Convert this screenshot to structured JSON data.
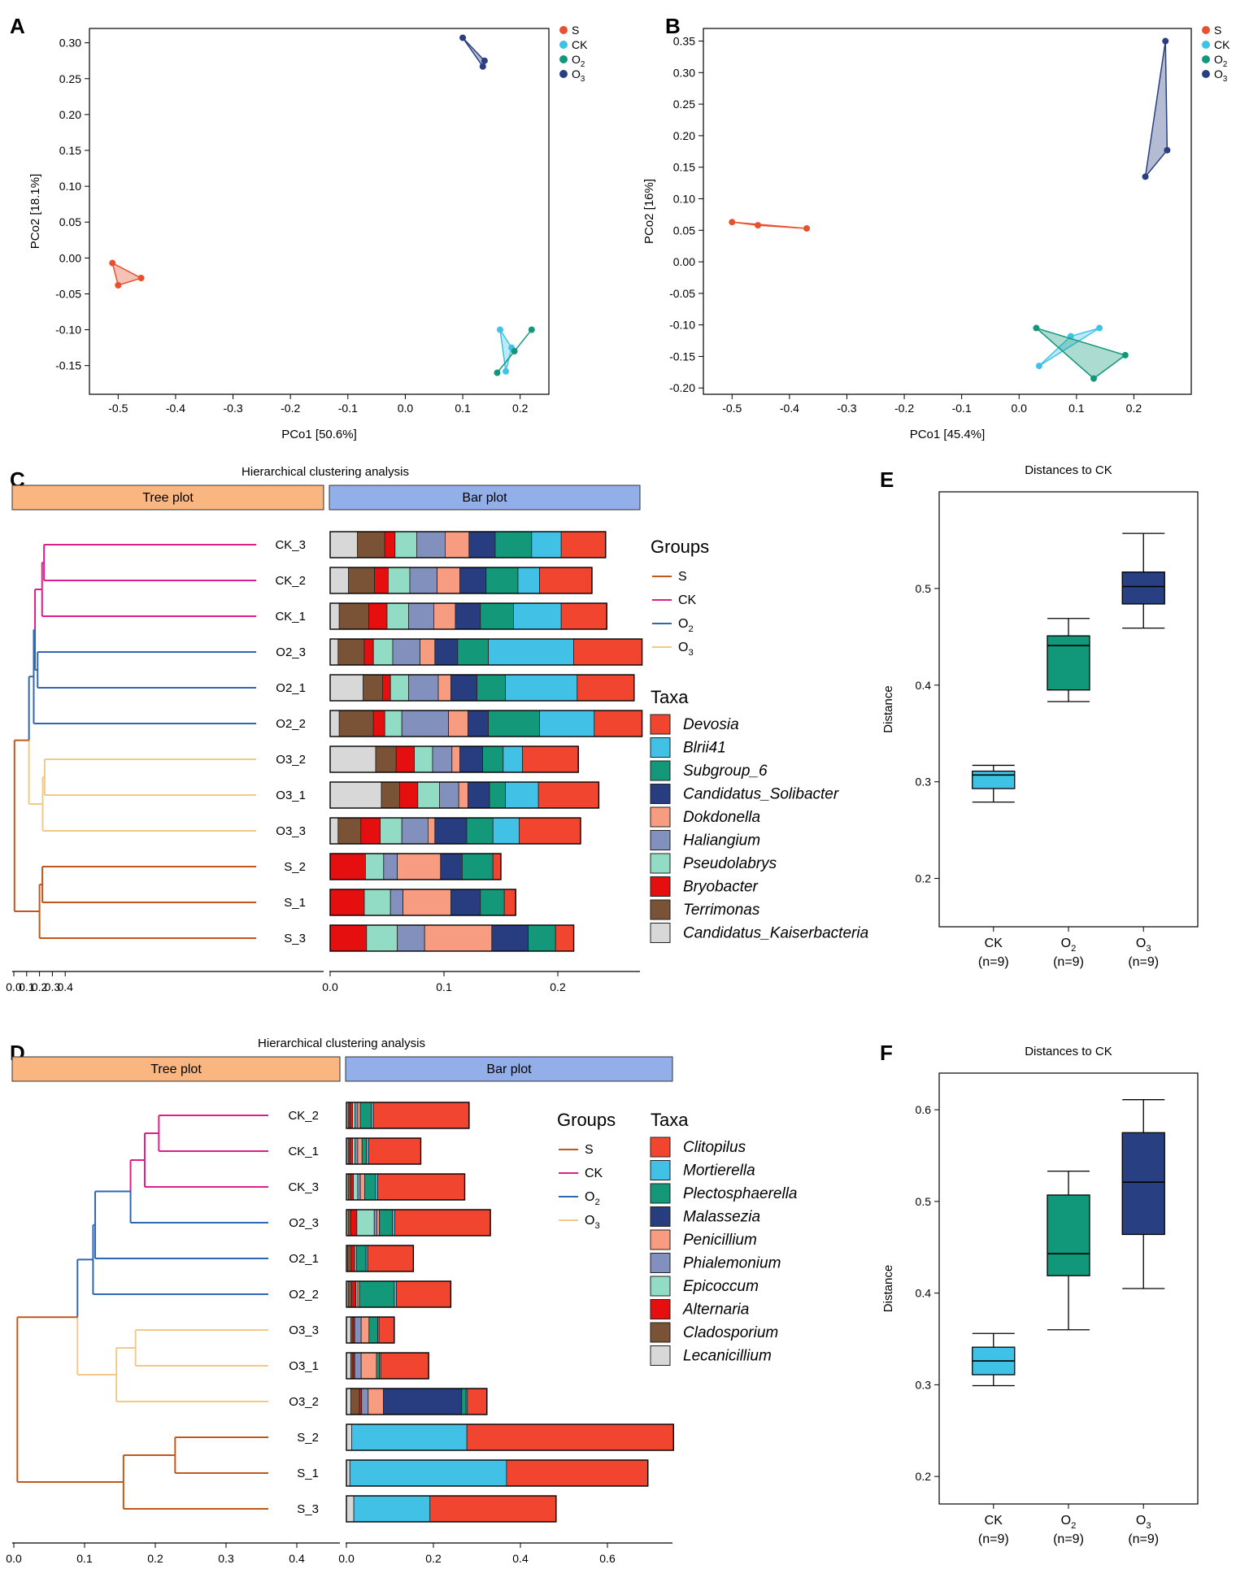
{
  "figure": {
    "panels": [
      "A",
      "B",
      "C",
      "D",
      "E",
      "F"
    ],
    "colors": {
      "S": "#e8502f",
      "CK": "#3ec3e6",
      "O2": "#11977a",
      "O3": "#283f82",
      "tree_S": "#c0571b",
      "tree_CK": "#de1e8a",
      "tree_O2": "#2f67b3",
      "tree_O3": "#f3c98a",
      "tree_header": "#f9b681",
      "bar_header": "#93afea"
    }
  },
  "legend_groups": [
    "S",
    "CK",
    "O2",
    "O3"
  ],
  "chart_data": [
    {
      "id": "A",
      "type": "scatter",
      "xlabel": "PCo1 [50.6%]",
      "ylabel": "PCo2 [18.1%]",
      "xlim": [
        -0.55,
        0.25
      ],
      "ylim": [
        -0.19,
        0.32
      ],
      "xticks": [
        "-0.5",
        "-0.4",
        "-0.3",
        "-0.2",
        "-0.1",
        "0.0",
        "0.1",
        "0.2"
      ],
      "yticks": [
        "-0.15",
        "-0.10",
        "-0.05",
        "0.00",
        "0.05",
        "0.10",
        "0.15",
        "0.20",
        "0.25",
        "0.30"
      ],
      "legend": [
        "S",
        "CK",
        "O2",
        "O3"
      ],
      "series": [
        {
          "name": "S",
          "points": [
            [
              -0.51,
              -0.007
            ],
            [
              -0.46,
              -0.028
            ],
            [
              -0.5,
              -0.038
            ]
          ]
        },
        {
          "name": "CK",
          "points": [
            [
              0.165,
              -0.1
            ],
            [
              0.185,
              -0.125
            ],
            [
              0.175,
              -0.158
            ]
          ]
        },
        {
          "name": "O2",
          "points": [
            [
              0.22,
              -0.1
            ],
            [
              0.19,
              -0.13
            ],
            [
              0.16,
              -0.16
            ]
          ]
        },
        {
          "name": "O3",
          "points": [
            [
              0.1,
              0.307
            ],
            [
              0.138,
              0.275
            ],
            [
              0.135,
              0.267
            ]
          ]
        }
      ]
    },
    {
      "id": "B",
      "type": "scatter",
      "xlabel": "PCo1 [45.4%]",
      "ylabel": "PCo2 [16%]",
      "xlim": [
        -0.55,
        0.3
      ],
      "ylim": [
        -0.21,
        0.37
      ],
      "xticks": [
        "-0.5",
        "-0.4",
        "-0.3",
        "-0.2",
        "-0.1",
        "0.0",
        "0.1",
        "0.2"
      ],
      "yticks": [
        "-0.20",
        "-0.15",
        "-0.10",
        "-0.05",
        "0.00",
        "0.05",
        "0.10",
        "0.15",
        "0.20",
        "0.25",
        "0.30",
        "0.35"
      ],
      "legend": [
        "S",
        "CK",
        "O2",
        "O3"
      ],
      "series": [
        {
          "name": "S",
          "points": [
            [
              -0.5,
              0.063
            ],
            [
              -0.455,
              0.058
            ],
            [
              -0.37,
              0.053
            ]
          ]
        },
        {
          "name": "CK",
          "points": [
            [
              0.035,
              -0.165
            ],
            [
              0.09,
              -0.118
            ],
            [
              0.14,
              -0.105
            ]
          ]
        },
        {
          "name": "O2",
          "points": [
            [
              0.03,
              -0.105
            ],
            [
              0.185,
              -0.148
            ],
            [
              0.13,
              -0.185
            ]
          ]
        },
        {
          "name": "O3",
          "points": [
            [
              0.255,
              0.35
            ],
            [
              0.258,
              0.177
            ],
            [
              0.22,
              0.135
            ]
          ]
        }
      ]
    },
    {
      "id": "C",
      "type": "bar",
      "title": "Hierarchical clustering analysis",
      "tree_label": "Tree plot",
      "bar_label": "Bar plot",
      "tree_ticks": [
        "0.0",
        "0.1",
        "0.2",
        "0.3",
        "0.4"
      ],
      "bar_ticks": [
        "0.0",
        "0.1",
        "0.2"
      ],
      "groups_title": "Groups",
      "taxa_title": "Taxa",
      "taxa": [
        "Devosia",
        "Blrii41",
        "Subgroup_6",
        "Candidatus_Solibacter",
        "Dokdonella",
        "Haliangium",
        "Pseudolabrys",
        "Bryobacter",
        "Terrimonas",
        "Candidatus_Kaiserbacteria"
      ],
      "taxa_colors": [
        "#f2452f",
        "#41c1e6",
        "#14987a",
        "#283d80",
        "#f79c80",
        "#8290bd",
        "#92dcc5",
        "#e50f10",
        "#7a5236",
        "#d8d8d8"
      ],
      "samples": [
        {
          "label": "CK_3",
          "group": "CK",
          "values": [
            0.039,
            0.026,
            0.032,
            0.023,
            0.021,
            0.025,
            0.019,
            0.009,
            0.024,
            0.024
          ]
        },
        {
          "label": "CK_2",
          "group": "CK",
          "values": [
            0.046,
            0.019,
            0.028,
            0.023,
            0.02,
            0.024,
            0.019,
            0.012,
            0.023,
            0.016
          ]
        },
        {
          "label": "CK_1",
          "group": "CK",
          "values": [
            0.04,
            0.042,
            0.029,
            0.022,
            0.019,
            0.022,
            0.019,
            0.016,
            0.026,
            0.008
          ]
        },
        {
          "label": "O2_3",
          "group": "O2",
          "values": [
            0.06,
            0.075,
            0.027,
            0.02,
            0.013,
            0.024,
            0.017,
            0.008,
            0.023,
            0.007
          ]
        },
        {
          "label": "O2_1",
          "group": "O2",
          "values": [
            0.05,
            0.063,
            0.025,
            0.023,
            0.011,
            0.026,
            0.016,
            0.007,
            0.017,
            0.029
          ]
        },
        {
          "label": "O2_2",
          "group": "O2",
          "values": [
            0.042,
            0.048,
            0.045,
            0.018,
            0.017,
            0.041,
            0.015,
            0.01,
            0.03,
            0.008
          ]
        },
        {
          "label": "O3_2",
          "group": "O3",
          "values": [
            0.049,
            0.017,
            0.018,
            0.02,
            0.007,
            0.017,
            0.016,
            0.016,
            0.018,
            0.04
          ]
        },
        {
          "label": "O3_1",
          "group": "O3",
          "values": [
            0.053,
            0.029,
            0.014,
            0.019,
            0.008,
            0.017,
            0.019,
            0.016,
            0.016,
            0.045
          ]
        },
        {
          "label": "O3_3",
          "group": "O3",
          "values": [
            0.054,
            0.023,
            0.023,
            0.028,
            0.006,
            0.023,
            0.019,
            0.017,
            0.02,
            0.007
          ]
        },
        {
          "label": "S_2",
          "group": "S",
          "values": [
            0.007,
            0.0,
            0.027,
            0.019,
            0.038,
            0.012,
            0.016,
            0.031,
            0.0,
            0.0
          ]
        },
        {
          "label": "S_1",
          "group": "S",
          "values": [
            0.01,
            0.0,
            0.021,
            0.026,
            0.042,
            0.011,
            0.023,
            0.03,
            0.0,
            0.0
          ]
        },
        {
          "label": "S_3",
          "group": "S",
          "values": [
            0.016,
            0.0,
            0.024,
            0.032,
            0.059,
            0.024,
            0.027,
            0.032,
            0.0,
            0.0
          ]
        }
      ]
    },
    {
      "id": "D",
      "type": "bar",
      "title": "Hierarchical clustering analysis",
      "tree_label": "Tree plot",
      "bar_label": "Bar plot",
      "tree_ticks": [
        "0.0",
        "0.1",
        "0.2",
        "0.3",
        "0.4"
      ],
      "bar_ticks": [
        "0.0",
        "0.2",
        "0.4",
        "0.6"
      ],
      "groups_title": "Groups",
      "taxa_title": "Taxa",
      "taxa": [
        "Clitopilus",
        "Mortierella",
        "Plectosphaerella",
        "Malassezia",
        "Penicillium",
        "Phialemonium",
        "Epicoccum",
        "Alternaria",
        "Cladosporium",
        "Lecanicillium"
      ],
      "taxa_colors": [
        "#f2452f",
        "#41c1e6",
        "#14987a",
        "#283d80",
        "#f79c80",
        "#8290bd",
        "#92dcc5",
        "#e50f10",
        "#7a5236",
        "#d8d8d8"
      ],
      "samples": [
        {
          "label": "CK_2",
          "group": "CK",
          "values": [
            0.22,
            0.005,
            0.025,
            0.0,
            0.006,
            0.006,
            0.006,
            0.006,
            0.004,
            0.004
          ]
        },
        {
          "label": "CK_1",
          "group": "CK",
          "values": [
            0.12,
            0.005,
            0.01,
            0.0,
            0.01,
            0.006,
            0.006,
            0.006,
            0.004,
            0.004
          ]
        },
        {
          "label": "CK_3",
          "group": "CK",
          "values": [
            0.2,
            0.005,
            0.025,
            0.0,
            0.01,
            0.006,
            0.01,
            0.006,
            0.006,
            0.004
          ]
        },
        {
          "label": "O2_3",
          "group": "O2",
          "values": [
            0.22,
            0.005,
            0.03,
            0.0,
            0.006,
            0.006,
            0.04,
            0.014,
            0.006,
            0.004
          ]
        },
        {
          "label": "O2_1",
          "group": "O2",
          "values": [
            0.105,
            0.004,
            0.022,
            0.0,
            0.0,
            0.0,
            0.004,
            0.008,
            0.008,
            0.003
          ]
        },
        {
          "label": "O2_2",
          "group": "O2",
          "values": [
            0.125,
            0.005,
            0.08,
            0.0,
            0.004,
            0.0,
            0.004,
            0.01,
            0.008,
            0.004
          ]
        },
        {
          "label": "O3_3",
          "group": "O3",
          "values": [
            0.035,
            0.003,
            0.02,
            0.0,
            0.018,
            0.015,
            0.0,
            0.004,
            0.005,
            0.01
          ]
        },
        {
          "label": "O3_1",
          "group": "O3",
          "values": [
            0.11,
            0.003,
            0.007,
            0.0,
            0.035,
            0.015,
            0.0,
            0.004,
            0.005,
            0.01
          ]
        },
        {
          "label": "O3_2",
          "group": "O3",
          "values": [
            0.045,
            0.003,
            0.01,
            0.18,
            0.035,
            0.015,
            0.0,
            0.005,
            0.02,
            0.01
          ]
        },
        {
          "label": "S_2",
          "group": "S",
          "values": [
            0.475,
            0.265,
            0.0,
            0.0,
            0.0,
            0.0,
            0.0,
            0.0,
            0.0,
            0.012
          ]
        },
        {
          "label": "S_1",
          "group": "S",
          "values": [
            0.325,
            0.36,
            0.0,
            0.0,
            0.0,
            0.0,
            0.0,
            0.0,
            0.0,
            0.008
          ]
        },
        {
          "label": "S_3",
          "group": "S",
          "values": [
            0.29,
            0.175,
            0.0,
            0.0,
            0.0,
            0.0,
            0.0,
            0.0,
            0.0,
            0.017
          ]
        }
      ]
    },
    {
      "id": "E",
      "type": "box",
      "title": "Distances to CK",
      "ylabel": "Distance",
      "ylim": [
        0.15,
        0.6
      ],
      "yticks": [
        "0.2",
        "0.3",
        "0.4",
        "0.5"
      ],
      "categories": [
        "CK",
        "O2",
        "O3"
      ],
      "n_labels": [
        "(n=9)",
        "(n=9)",
        "(n=9)"
      ],
      "boxes": [
        {
          "name": "CK",
          "min": 0.279,
          "q1": 0.293,
          "median": 0.307,
          "q3": 0.311,
          "max": 0.317
        },
        {
          "name": "O2",
          "min": 0.383,
          "q1": 0.395,
          "median": 0.441,
          "q3": 0.451,
          "max": 0.469
        },
        {
          "name": "O3",
          "min": 0.459,
          "q1": 0.484,
          "median": 0.502,
          "q3": 0.517,
          "max": 0.557
        }
      ]
    },
    {
      "id": "F",
      "type": "box",
      "title": "Distances to CK",
      "ylabel": "Distance",
      "ylim": [
        0.17,
        0.64
      ],
      "yticks": [
        "0.2",
        "0.3",
        "0.4",
        "0.5",
        "0.6"
      ],
      "categories": [
        "CK",
        "O2",
        "O3"
      ],
      "n_labels": [
        "(n=9)",
        "(n=9)",
        "(n=9)"
      ],
      "boxes": [
        {
          "name": "CK",
          "min": 0.299,
          "q1": 0.311,
          "median": 0.326,
          "q3": 0.341,
          "max": 0.356
        },
        {
          "name": "O2",
          "min": 0.36,
          "q1": 0.419,
          "median": 0.443,
          "q3": 0.507,
          "max": 0.533
        },
        {
          "name": "O3",
          "min": 0.405,
          "q1": 0.464,
          "median": 0.521,
          "q3": 0.575,
          "max": 0.611
        }
      ]
    }
  ]
}
